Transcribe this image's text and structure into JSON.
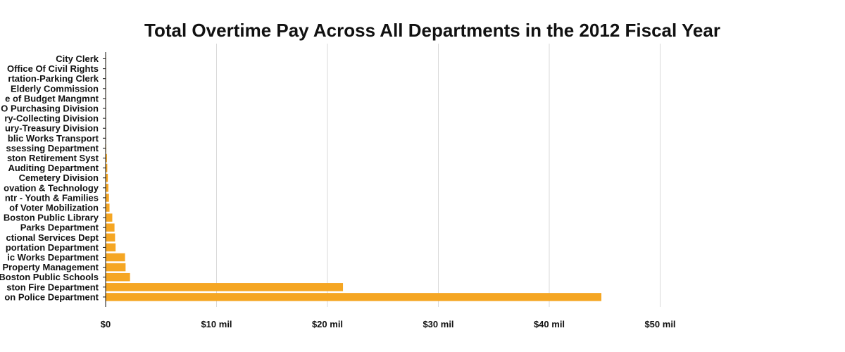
{
  "chart_data": {
    "type": "bar",
    "orientation": "horizontal",
    "title": "Total Overtime Pay Across All Departments in the 2012 Fiscal Year",
    "xlabel": "",
    "ylabel": "",
    "xlim": [
      0,
      60000000
    ],
    "x_ticks": [
      0,
      10000000,
      20000000,
      30000000,
      40000000,
      50000000
    ],
    "x_tick_labels": [
      "$0",
      "$10 mil",
      "$20 mil",
      "$30 mil",
      "$40 mil",
      "$50 mil"
    ],
    "grid": "vertical",
    "bar_color": "#f5a623",
    "categories": [
      "City Clerk",
      "Office Of Civil Rights",
      "rtation-Parking Clerk",
      "Elderly Commission",
      "e of Budget Mangmnt",
      "O Purchasing Division",
      "ry-Collecting Division",
      "ury-Treasury Division",
      "blic Works Transport",
      "ssessing Department",
      "ston Retirement Syst",
      "Auditing Department",
      "Cemetery Division",
      "ovation & Technology",
      "ntr - Youth & Families",
      "of Voter Mobilization",
      "Boston Public Library",
      "Parks Department",
      "ctional Services Dept",
      "portation Department",
      "ic Works Department",
      "Property Management",
      "Boston Public Schools",
      "ston Fire Department",
      "on Police Department"
    ],
    "values": [
      5000,
      8000,
      10000,
      12000,
      15000,
      20000,
      25000,
      30000,
      40000,
      50000,
      120000,
      150000,
      200000,
      250000,
      300000,
      350000,
      600000,
      800000,
      850000,
      900000,
      1750000,
      1800000,
      2200000,
      21400000,
      44700000
    ]
  }
}
